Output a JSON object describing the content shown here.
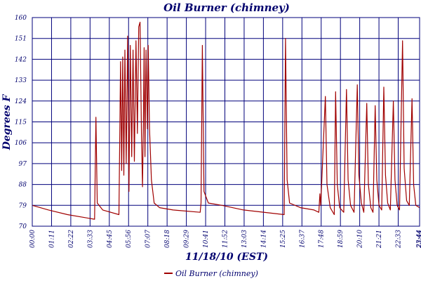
{
  "chart_data": {
    "type": "line",
    "title": "Oil Burner (chimney)",
    "xlabel": "11/18/10 (EST)",
    "ylabel": "Degrees F",
    "ylim": [
      70,
      160
    ],
    "y_ticks": [
      "70",
      "79",
      "88",
      "97",
      "106",
      "115",
      "124",
      "133",
      "142",
      "151",
      "160"
    ],
    "x_range_minutes": [
      0,
      1430
    ],
    "x_ticks": [
      "00:00",
      "01:11",
      "02:22",
      "03:33",
      "04:45",
      "05:56",
      "07:07",
      "08:18",
      "09:29",
      "10:41",
      "11:52",
      "13:03",
      "14:14",
      "15:25",
      "16:37",
      "17:48",
      "18:59",
      "20:10",
      "21:21",
      "22:33",
      "23:44",
      "23:44"
    ],
    "grid": true,
    "legend_position": "bottom",
    "colors": {
      "series": "#a00000",
      "grid": "#00007b",
      "text": "#00006e"
    },
    "series": [
      {
        "name": "Oil Burner (chimney)",
        "points": [
          [
            0,
            79
          ],
          [
            60,
            77
          ],
          [
            130,
            75
          ],
          [
            230,
            73
          ],
          [
            235,
            117
          ],
          [
            240,
            80
          ],
          [
            260,
            77
          ],
          [
            320,
            75
          ],
          [
            326,
            141
          ],
          [
            330,
            94
          ],
          [
            334,
            143
          ],
          [
            338,
            92
          ],
          [
            342,
            146
          ],
          [
            347,
            97
          ],
          [
            352,
            152
          ],
          [
            357,
            85
          ],
          [
            362,
            148
          ],
          [
            367,
            100
          ],
          [
            372,
            146
          ],
          [
            377,
            98
          ],
          [
            383,
            150
          ],
          [
            388,
            110
          ],
          [
            393,
            156
          ],
          [
            398,
            158
          ],
          [
            403,
            110
          ],
          [
            407,
            87
          ],
          [
            410,
            113
          ],
          [
            413,
            147
          ],
          [
            416,
            100
          ],
          [
            420,
            146
          ],
          [
            425,
            112
          ],
          [
            428,
            148
          ],
          [
            433,
            112
          ],
          [
            440,
            90
          ],
          [
            450,
            80
          ],
          [
            470,
            78
          ],
          [
            520,
            77
          ],
          [
            620,
            76
          ],
          [
            623,
            80
          ],
          [
            628,
            148
          ],
          [
            634,
            85
          ],
          [
            650,
            80
          ],
          [
            700,
            79
          ],
          [
            780,
            77
          ],
          [
            930,
            75
          ],
          [
            935,
            151
          ],
          [
            941,
            90
          ],
          [
            950,
            80
          ],
          [
            990,
            78
          ],
          [
            1040,
            77
          ],
          [
            1058,
            76
          ],
          [
            1062,
            84
          ],
          [
            1065,
            79
          ],
          [
            1082,
            126
          ],
          [
            1088,
            88
          ],
          [
            1100,
            78
          ],
          [
            1115,
            75
          ],
          [
            1120,
            128
          ],
          [
            1126,
            88
          ],
          [
            1135,
            78
          ],
          [
            1150,
            76
          ],
          [
            1160,
            129
          ],
          [
            1166,
            90
          ],
          [
            1175,
            79
          ],
          [
            1188,
            76
          ],
          [
            1200,
            131
          ],
          [
            1206,
            92
          ],
          [
            1215,
            80
          ],
          [
            1224,
            76
          ],
          [
            1235,
            123
          ],
          [
            1241,
            88
          ],
          [
            1250,
            78
          ],
          [
            1258,
            76
          ],
          [
            1266,
            122
          ],
          [
            1272,
            90
          ],
          [
            1280,
            79
          ],
          [
            1290,
            77
          ],
          [
            1298,
            130
          ],
          [
            1304,
            92
          ],
          [
            1312,
            80
          ],
          [
            1322,
            77
          ],
          [
            1333,
            124
          ],
          [
            1339,
            90
          ],
          [
            1347,
            79
          ],
          [
            1356,
            77
          ],
          [
            1367,
            150
          ],
          [
            1373,
            95
          ],
          [
            1382,
            81
          ],
          [
            1392,
            79
          ],
          [
            1402,
            125
          ],
          [
            1408,
            88
          ],
          [
            1416,
            79
          ],
          [
            1430,
            78
          ]
        ]
      }
    ]
  }
}
